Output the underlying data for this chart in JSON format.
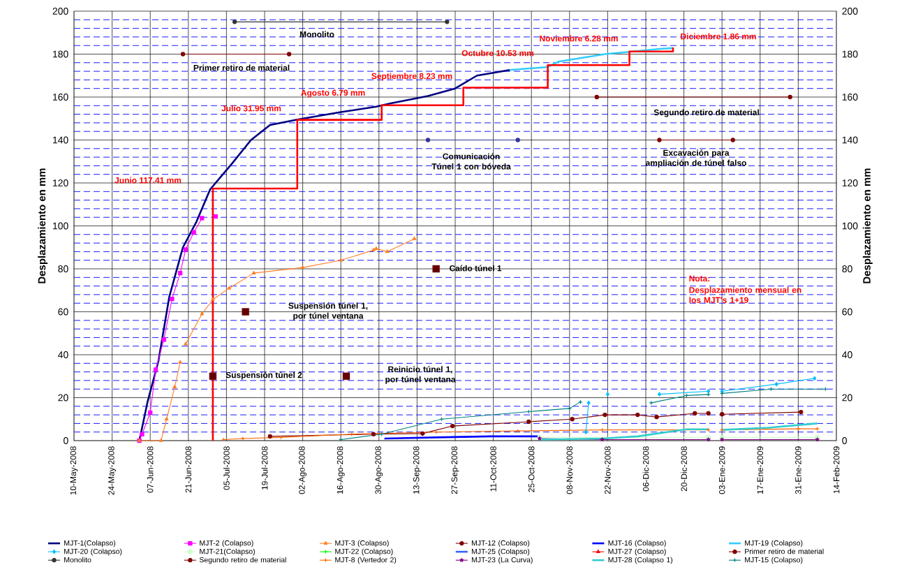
{
  "chart_data": {
    "type": "line",
    "ylabel": "Desplazamiento en mm",
    "y2label": "Desplazamiento en mm",
    "xlim": [
      "2008-05-10",
      "2009-02-14"
    ],
    "xticks": [
      {
        "value": "2008-05-10",
        "label": "10-May-2008"
      },
      {
        "value": "2008-05-24",
        "label": "24-May-2008"
      },
      {
        "value": "2008-06-07",
        "label": "07-Jun-2008"
      },
      {
        "value": "2008-06-21",
        "label": "21-Jun-2008"
      },
      {
        "value": "2008-07-05",
        "label": "05-Jul-2008"
      },
      {
        "value": "2008-07-19",
        "label": "19-Jul-2008"
      },
      {
        "value": "2008-08-02",
        "label": "02-Ago-2008"
      },
      {
        "value": "2008-08-16",
        "label": "16-Ago-2008"
      },
      {
        "value": "2008-08-30",
        "label": "30-Ago-2008"
      },
      {
        "value": "2008-09-13",
        "label": "13-Sep-2008"
      },
      {
        "value": "2008-09-27",
        "label": "27-Sep-2008"
      },
      {
        "value": "2008-10-11",
        "label": "11-Oct-2008"
      },
      {
        "value": "2008-10-25",
        "label": "25-Oct-2008"
      },
      {
        "value": "2008-11-08",
        "label": "08-Nov-2008"
      },
      {
        "value": "2008-11-22",
        "label": "22-Nov-2008"
      },
      {
        "value": "2008-12-06",
        "label": "06-Dic-2008"
      },
      {
        "value": "2008-12-20",
        "label": "20-Dic-2008"
      },
      {
        "value": "2009-01-03",
        "label": "03-Ene-2009"
      },
      {
        "value": "2009-01-17",
        "label": "17-Ene-2009"
      },
      {
        "value": "2009-01-31",
        "label": "31-Ene-2009"
      },
      {
        "value": "2009-02-14",
        "label": "14-Feb-2009"
      }
    ],
    "ylim": [
      0,
      200
    ],
    "yticks": [
      0,
      20,
      40,
      60,
      80,
      100,
      120,
      140,
      160,
      180,
      200
    ],
    "ref_lines": [
      {
        "axis": "y",
        "value": 4,
        "color": "#0000ff",
        "line_style": "dashed"
      },
      {
        "axis": "y",
        "value": 8,
        "color": "#0000ff",
        "line_style": "dashed"
      },
      {
        "axis": "y",
        "value": 12,
        "color": "#0000ff",
        "line_style": "dashed"
      },
      {
        "axis": "y",
        "value": 16,
        "color": "#0000ff",
        "line_style": "dashed"
      },
      {
        "axis": "y",
        "value": 24,
        "color": "#0000ff",
        "line_style": "dashed"
      },
      {
        "axis": "y",
        "value": 28,
        "color": "#0000ff",
        "line_style": "dashed"
      },
      {
        "axis": "y",
        "value": 32,
        "color": "#0000ff",
        "line_style": "dashed"
      },
      {
        "axis": "y",
        "value": 36,
        "color": "#0000ff",
        "line_style": "dashed"
      },
      {
        "axis": "y",
        "value": 44,
        "color": "#0000ff",
        "line_style": "dashed"
      },
      {
        "axis": "y",
        "value": 48,
        "color": "#0000ff",
        "line_style": "dashed"
      },
      {
        "axis": "y",
        "value": 52,
        "color": "#0000ff",
        "line_style": "dashed"
      },
      {
        "axis": "y",
        "value": 56,
        "color": "#0000ff",
        "line_style": "dashed"
      },
      {
        "axis": "y",
        "value": 64,
        "color": "#0000ff",
        "line_style": "dashed"
      },
      {
        "axis": "y",
        "value": 68,
        "color": "#0000ff",
        "line_style": "dashed"
      },
      {
        "axis": "y",
        "value": 72,
        "color": "#0000ff",
        "line_style": "dashed"
      },
      {
        "axis": "y",
        "value": 76,
        "color": "#0000ff",
        "line_style": "dashed"
      },
      {
        "axis": "y",
        "value": 84,
        "color": "#0000ff",
        "line_style": "dashed"
      },
      {
        "axis": "y",
        "value": 88,
        "color": "#0000ff",
        "line_style": "dashed"
      },
      {
        "axis": "y",
        "value": 92,
        "color": "#0000ff",
        "line_style": "dashed"
      },
      {
        "axis": "y",
        "value": 96,
        "color": "#0000ff",
        "line_style": "dashed"
      },
      {
        "axis": "y",
        "value": 104,
        "color": "#0000ff",
        "line_style": "dashed"
      },
      {
        "axis": "y",
        "value": 108,
        "color": "#0000ff",
        "line_style": "dashed"
      },
      {
        "axis": "y",
        "value": 112,
        "color": "#0000ff",
        "line_style": "dashed"
      },
      {
        "axis": "y",
        "value": 116,
        "color": "#0000ff",
        "line_style": "dashed"
      },
      {
        "axis": "y",
        "value": 124,
        "color": "#0000ff",
        "line_style": "dashed"
      },
      {
        "axis": "y",
        "value": 128,
        "color": "#0000ff",
        "line_style": "dashed"
      },
      {
        "axis": "y",
        "value": 132,
        "color": "#0000ff",
        "line_style": "dashed"
      },
      {
        "axis": "y",
        "value": 136,
        "color": "#0000ff",
        "line_style": "dashed"
      },
      {
        "axis": "y",
        "value": 144,
        "color": "#0000ff",
        "line_style": "dashed"
      },
      {
        "axis": "y",
        "value": 148,
        "color": "#0000ff",
        "line_style": "dashed"
      },
      {
        "axis": "y",
        "value": 152,
        "color": "#0000ff",
        "line_style": "dashed"
      },
      {
        "axis": "y",
        "value": 156,
        "color": "#0000ff",
        "line_style": "dashed"
      },
      {
        "axis": "y",
        "value": 164,
        "color": "#0000ff",
        "line_style": "dashed"
      },
      {
        "axis": "y",
        "value": 168,
        "color": "#0000ff",
        "line_style": "dashed"
      },
      {
        "axis": "y",
        "value": 172,
        "color": "#0000ff",
        "line_style": "dashed"
      },
      {
        "axis": "y",
        "value": 176,
        "color": "#0000ff",
        "line_style": "dashed"
      },
      {
        "axis": "y",
        "value": 184,
        "color": "#0000ff",
        "line_style": "dashed"
      },
      {
        "axis": "y",
        "value": 188,
        "color": "#0000ff",
        "line_style": "dashed"
      },
      {
        "axis": "y",
        "value": 192,
        "color": "#0000ff",
        "line_style": "dashed"
      },
      {
        "axis": "y",
        "value": 196,
        "color": "#0000ff",
        "line_style": "dashed"
      }
    ],
    "y2lim": [
      0,
      200
    ],
    "y2ticks": [
      0,
      20,
      40,
      60,
      80,
      100,
      120,
      140,
      160,
      180,
      200
    ],
    "grid": true,
    "legend": "bottom",
    "series": [
      {
        "name": "MJT-1(Colapso)",
        "color": "#000080",
        "marker": "none",
        "x": [
          "2008-06-03",
          "2008-06-06",
          "2008-06-10",
          "2008-06-14",
          "2008-06-19",
          "2008-06-24",
          "2008-06-29",
          "2008-07-07",
          "2008-07-14",
          "2008-07-21",
          "2008-07-31",
          "2008-08-16",
          "2008-08-29",
          "2008-09-03",
          "2008-09-17",
          "2008-09-27",
          "2008-10-05",
          "2008-10-17"
        ],
        "values": [
          0,
          18,
          37,
          67,
          90,
          102,
          117,
          129,
          140,
          147,
          149.5,
          153,
          155.5,
          157,
          160.5,
          164,
          170,
          172.6
        ]
      },
      {
        "name": "MJT-2 (Colapso)",
        "color": "#ff00ff",
        "marker": "square",
        "x": [
          "2008-06-03",
          "2008-06-04",
          "2008-06-07",
          "2008-06-09",
          "2008-06-12",
          "2008-06-15",
          "2008-06-18",
          "2008-06-20",
          "2008-06-23",
          "2008-06-26",
          "2008-06-28",
          "2008-07-01"
        ],
        "values": [
          0,
          3,
          13,
          33,
          47,
          66,
          78,
          89,
          97,
          103.6,
          null,
          104.4
        ]
      },
      {
        "name": "MJT-3 (Colapso)",
        "color": "#ff7f27",
        "marker": "triangle",
        "x": [
          "2008-06-03",
          "2008-06-11",
          "2008-06-13",
          "2008-06-16",
          "2008-06-18",
          "2008-06-19",
          "2008-06-20",
          "2008-06-26",
          "2008-06-30",
          "2008-07-06",
          "2008-07-15",
          "2008-08-02",
          "2008-08-16",
          "2008-08-28",
          "2008-08-29",
          "2008-09-02",
          "2008-09-12"
        ],
        "values": [
          0,
          0,
          10,
          25,
          36.5,
          null,
          45,
          59,
          65.7,
          71,
          78,
          80.6,
          84,
          88.7,
          89.4,
          88,
          94
        ]
      },
      {
        "name": "MJT-12 (Colapso)",
        "color": "#800000",
        "marker": "circle",
        "x": [
          "2008-07-21",
          "2008-08-28",
          "2008-09-15",
          "2008-09-26",
          "2008-10-24",
          "2008-11-09",
          "2008-11-21",
          "2008-12-03",
          "2008-12-10",
          "2008-12-24",
          "2008-12-29",
          "2009-01-01",
          "2009-01-03",
          "2009-02-01"
        ],
        "values": [
          2,
          3,
          3.3,
          6.8,
          8.8,
          10,
          12,
          12,
          11,
          12.7,
          12.7,
          null,
          12.3,
          13.3
        ]
      },
      {
        "name": "MJT-16 (Colapso)",
        "color": "#0000ff",
        "marker": "none",
        "x": [
          "2008-09-01",
          "2008-09-20",
          "2008-10-10",
          "2008-10-28"
        ],
        "values": [
          1,
          1.5,
          2,
          2
        ]
      },
      {
        "name": "MJT-19 (Colapso)",
        "color": "#33ccff",
        "marker": "none",
        "x": [
          "2008-10-17",
          "2008-10-31",
          "2008-11-04",
          "2008-11-21",
          "2008-12-12",
          "2008-12-16"
        ],
        "values": [
          172.6,
          174,
          176.5,
          180,
          182.5,
          182.8
        ]
      },
      {
        "name": "MJT-20 (Colapso)",
        "color": "#00bfff",
        "marker": "diamond",
        "x": [
          "2008-11-14",
          "2008-11-15",
          "2008-11-18",
          "2008-11-22",
          "2008-11-28",
          "2008-12-11",
          "2008-12-29",
          "2009-01-01",
          "2009-01-03",
          "2009-01-23",
          "2009-02-06"
        ],
        "values": [
          4,
          17.6,
          null,
          21.6,
          null,
          21.6,
          23,
          null,
          23,
          26.3,
          29
        ]
      },
      {
        "name": "MJT-21(Colapso)",
        "color": "#ccffcc",
        "marker": "square",
        "x": [
          "2008-10-28",
          "2008-12-29",
          "2009-01-01",
          "2009-01-03",
          "2009-02-07"
        ],
        "values": [
          1.5,
          1.5,
          null,
          1.5,
          1.5
        ]
      },
      {
        "name": "MJT-22 (Colapso)",
        "color": "#00ff00",
        "marker": "cross"
      },
      {
        "name": "MJT-25 (Colapso)",
        "color": "#3366ff",
        "marker": "none"
      },
      {
        "name": "MJT-27 (Colapso)",
        "color": "#ff0000",
        "marker": "triangle"
      },
      {
        "name": "Primer retiro de material",
        "color": "#800000",
        "marker": "circle",
        "x": [
          "2008-06-19",
          "2008-07-28"
        ],
        "values": [
          180,
          180
        ]
      },
      {
        "name": "Monolito",
        "color": "#333333",
        "marker": "circle",
        "x": [
          "2008-07-08",
          "2008-09-24"
        ],
        "values": [
          195,
          195
        ]
      },
      {
        "name": "Segundo retiro de material",
        "color": "#800000",
        "marker": "circle",
        "x": [
          "2008-11-18",
          "2009-01-28"
        ],
        "values": [
          160,
          160
        ]
      },
      {
        "name": "MJT-8 (Vertedor 2)",
        "color": "#ff6600",
        "marker": "cross",
        "x": [
          "2008-07-04",
          "2008-07-11",
          "2008-07-25",
          "2008-08-20",
          "2008-09-20",
          "2008-10-20",
          "2008-11-20",
          "2008-12-29",
          "2009-01-01",
          "2009-01-03",
          "2009-01-31",
          "2009-02-07"
        ],
        "values": [
          0.5,
          1,
          1.5,
          3,
          4,
          4.5,
          5,
          5,
          null,
          5,
          5.5,
          5.5
        ]
      },
      {
        "name": "MJT-23 (La Curva)",
        "color": "#800080",
        "marker": "star",
        "x": [
          "2008-10-28",
          "2008-11-20",
          "2008-12-29",
          "2009-01-01",
          "2009-01-03",
          "2009-02-07"
        ],
        "values": [
          1,
          0.5,
          0.5,
          null,
          0.5,
          0.5
        ]
      },
      {
        "name": "MJT-28 (Colapso 1)",
        "color": "#33cccc",
        "marker": "none",
        "x": [
          "2008-10-28",
          "2008-11-20",
          "2008-12-03",
          "2008-12-21",
          "2008-12-29",
          "2009-01-01",
          "2009-01-03",
          "2009-01-20",
          "2009-02-07"
        ],
        "values": [
          0.5,
          1,
          2,
          5.3,
          5.3,
          null,
          5,
          6,
          8
        ]
      },
      {
        "name": "MJT-15 (Colapso)",
        "color": "#008080",
        "marker": "cross",
        "x": [
          "2008-08-16",
          "2008-08-31",
          "2008-09-22",
          "2008-10-24",
          "2008-11-08",
          "2008-11-12",
          "2008-11-20",
          "2008-12-08",
          "2008-12-21",
          "2008-12-29",
          "2009-01-01",
          "2009-01-03",
          "2009-01-21",
          "2009-02-10"
        ],
        "values": [
          0.5,
          3,
          10,
          13.5,
          15,
          18,
          null,
          17.6,
          21,
          21.5,
          null,
          22,
          24,
          24
        ]
      },
      {
        "color": "#ff0000",
        "marker": "none",
        "x": [
          "2008-06-30",
          "2008-06-30",
          "2008-07-31",
          "2008-07-31",
          "2008-08-31",
          "2008-08-31",
          "2008-09-30",
          "2008-09-30",
          "2008-10-31",
          "2008-10-31",
          "2008-11-30",
          "2008-11-30",
          "2008-12-16",
          "2008-12-16"
        ],
        "values": [
          0,
          117.4,
          117.4,
          149.4,
          149.4,
          156.2,
          156.2,
          164.4,
          164.4,
          174.9,
          174.9,
          181.2,
          181.2,
          183.1
        ]
      },
      {
        "type": "scatter",
        "color": "#660000",
        "marker": "square",
        "x": [
          "2008-06-30",
          "2008-07-12",
          "2008-08-18",
          "2008-09-20"
        ],
        "values": [
          30,
          60,
          30,
          80
        ]
      },
      {
        "color": "#333399",
        "marker": "circle",
        "x": [
          "2008-09-17",
          "2008-10-20"
        ],
        "values": [
          140,
          140
        ]
      },
      {
        "color": "#800000",
        "marker": "circle",
        "x": [
          "2008-12-11",
          "2009-01-07"
        ],
        "values": [
          140,
          140
        ]
      }
    ],
    "annotations": [
      "Monolito",
      "Primer retiro de material",
      "Segundo retiro de material",
      "Comunicación Túnel 1 con bóveda",
      "Excavación para ampliación de túnel falso",
      "Suspensión túnel 2",
      "Suspensión túnel 1, por túnel ventana",
      "Reinicio túnel 1, por túnel ventana",
      "Caído túnel 1",
      "Junio 117.41 mm",
      "Julio 31.95 mm",
      "Agosto 6.79 mm",
      "Septiembre 8.23 mm",
      "Octubre 10.53 mm",
      "Noviembre 6.28 mm",
      "Diciembre 1.86 mm",
      "Nota:",
      "Desplazamiento mensual en los MJT's 1+19"
    ]
  }
}
